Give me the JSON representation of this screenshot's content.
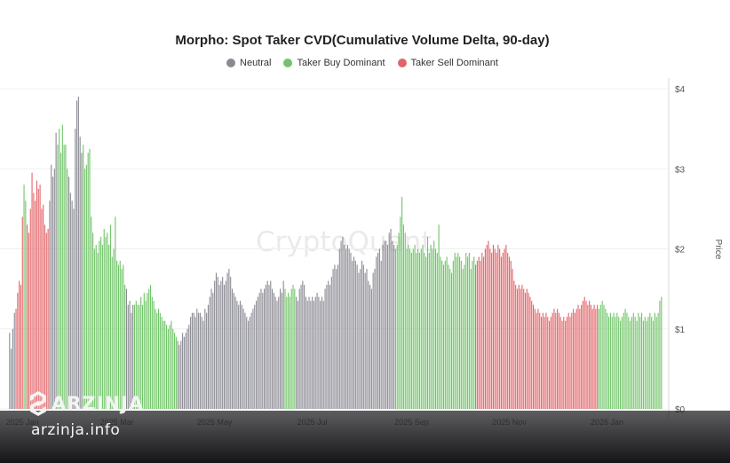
{
  "chart_data": {
    "type": "bar",
    "title": "Morpho: Spot Taker CVD(Cumulative Volume Delta, 90-day)",
    "ylabel": "Price",
    "ylim": [
      0,
      4
    ],
    "y_ticks": [
      "$0",
      "$1",
      "$2",
      "$3",
      "$4"
    ],
    "x_ticks": [
      "2025 Jan",
      "2025 Mar",
      "2025 May",
      "2025 Jul",
      "2025 Sep",
      "2025 Nov",
      "2026 Jan"
    ],
    "legend": [
      {
        "name": "Neutral",
        "color": "#8a8a93"
      },
      {
        "name": "Taker Buy Dominant",
        "color": "#72c46a"
      },
      {
        "name": "Taker Sell Dominant",
        "color": "#e26468"
      }
    ],
    "legend_position": "top-center",
    "grid": true,
    "series_segments": [
      {
        "from": "2024-12-24",
        "to": "2024-12-27",
        "state": "Neutral",
        "values": [
          0.95,
          0.75,
          1.0,
          1.2
        ]
      },
      {
        "from": "2024-12-28",
        "to": "2025-01-01",
        "state": "Taker Sell Dominant",
        "values": [
          1.25,
          1.45,
          1.6,
          1.55,
          2.4
        ]
      },
      {
        "from": "2025-01-02",
        "to": "2025-01-03",
        "state": "Taker Buy Dominant",
        "values": [
          2.8,
          2.6
        ]
      },
      {
        "from": "2025-01-04",
        "to": "2025-01-17",
        "state": "Taker Sell Dominant",
        "values": [
          2.3,
          2.2,
          2.5,
          2.95,
          2.7,
          2.6,
          2.85,
          2.75,
          2.8,
          2.5,
          2.55,
          2.3,
          2.2,
          2.25
        ]
      },
      {
        "from": "2025-01-18",
        "to": "2025-01-22",
        "state": "Neutral",
        "values": [
          2.6,
          3.05,
          2.9,
          3.0,
          3.45
        ]
      },
      {
        "from": "2025-01-23",
        "to": "2025-01-29",
        "state": "Taker Buy Dominant",
        "values": [
          3.3,
          3.5,
          3.2,
          3.55,
          3.3,
          3.3,
          3.0
        ]
      },
      {
        "from": "2025-01-30",
        "to": "2025-02-07",
        "state": "Neutral",
        "values": [
          2.9,
          2.7,
          2.6,
          2.5,
          3.5,
          3.85,
          3.9,
          3.4,
          3.2
        ]
      },
      {
        "from": "2025-02-08",
        "to": "2025-03-06",
        "state": "Taker Buy Dominant",
        "values": [
          3.3,
          3.0,
          3.05,
          3.2,
          3.25,
          2.4,
          2.2,
          2.0,
          2.05,
          1.95,
          2.1,
          2.15,
          2.05,
          2.25,
          2.15,
          2.2,
          2.05,
          2.3,
          1.9,
          2.0,
          2.4,
          1.85,
          1.8,
          1.85,
          1.75,
          1.8,
          1.55
        ]
      },
      {
        "from": "2025-03-07",
        "to": "2025-03-11",
        "state": "Neutral",
        "values": [
          1.5,
          1.3,
          1.35,
          1.2,
          1.3
        ]
      },
      {
        "from": "2025-03-12",
        "to": "2025-04-07",
        "state": "Taker Buy Dominant",
        "values": [
          1.3,
          1.35,
          1.3,
          1.3,
          1.4,
          1.3,
          1.45,
          1.35,
          1.45,
          1.5,
          1.55,
          1.4,
          1.35,
          1.25,
          1.2,
          1.25,
          1.2,
          1.15,
          1.1,
          1.1,
          1.05,
          1.0,
          1.05,
          1.1,
          1.0,
          0.95,
          0.9
        ]
      },
      {
        "from": "2025-04-08",
        "to": "2025-06-13",
        "state": "Neutral",
        "values": [
          0.85,
          0.8,
          0.85,
          0.95,
          0.9,
          0.95,
          1.0,
          1.05,
          1.15,
          1.2,
          1.2,
          1.15,
          1.25,
          1.2,
          1.2,
          1.15,
          1.1,
          1.25,
          1.2,
          1.3,
          1.4,
          1.5,
          1.45,
          1.6,
          1.7,
          1.65,
          1.55,
          1.6,
          1.65,
          1.55,
          1.6,
          1.7,
          1.75,
          1.65,
          1.5,
          1.45,
          1.4,
          1.35,
          1.3,
          1.35,
          1.3,
          1.25,
          1.2,
          1.15,
          1.1,
          1.15,
          1.2,
          1.25,
          1.3,
          1.35,
          1.4,
          1.45,
          1.5,
          1.45,
          1.5,
          1.55,
          1.6,
          1.55,
          1.6,
          1.5,
          1.45,
          1.4,
          1.35,
          1.4,
          1.5,
          1.45,
          1.6
        ]
      },
      {
        "from": "2025-06-14",
        "to": "2025-06-20",
        "state": "Taker Buy Dominant",
        "values": [
          1.5,
          1.4,
          1.45,
          1.4,
          1.5,
          1.55,
          1.5
        ]
      },
      {
        "from": "2025-06-21",
        "to": "2025-08-21",
        "state": "Neutral",
        "values": [
          1.4,
          1.35,
          1.5,
          1.55,
          1.6,
          1.55,
          1.4,
          1.35,
          1.4,
          1.35,
          1.4,
          1.35,
          1.4,
          1.45,
          1.4,
          1.35,
          1.4,
          1.35,
          1.5,
          1.55,
          1.6,
          1.55,
          1.65,
          1.75,
          1.8,
          1.75,
          1.8,
          2.0,
          2.1,
          2.15,
          2.05,
          2.0,
          2.05,
          2.0,
          1.95,
          1.85,
          1.9,
          1.85,
          1.8,
          1.7,
          1.75,
          1.85,
          1.8,
          1.7,
          1.75,
          1.6,
          1.55,
          1.5,
          1.7,
          1.75,
          1.9,
          1.95,
          2.0,
          1.85,
          2.05,
          2.1,
          2.1,
          2.05,
          2.2,
          2.25,
          2.1,
          2.05
        ]
      },
      {
        "from": "2025-08-22",
        "to": "2025-10-10",
        "state": "Taker Buy Dominant",
        "values": [
          2.0,
          2.05,
          2.2,
          2.4,
          2.65,
          2.3,
          2.2,
          2.0,
          2.05,
          2.0,
          1.95,
          2.0,
          2.05,
          1.95,
          2.0,
          1.95,
          2.0,
          2.05,
          1.95,
          1.9,
          2.15,
          1.95,
          2.05,
          2.0,
          2.1,
          2.0,
          1.95,
          2.3,
          1.9,
          1.85,
          1.8,
          1.85,
          1.9,
          1.8,
          1.75,
          1.7,
          1.85,
          1.95,
          1.9,
          1.95,
          1.9,
          1.85,
          1.75,
          1.8,
          1.95,
          1.9,
          1.95,
          1.75,
          1.85,
          1.9
        ]
      },
      {
        "from": "2025-10-11",
        "to": "2025-12-26",
        "state": "Taker Sell Dominant",
        "values": [
          1.8,
          1.85,
          1.9,
          1.85,
          1.95,
          1.9,
          2.0,
          2.05,
          2.1,
          2.0,
          1.95,
          2.05,
          2.0,
          1.95,
          2.05,
          2.0,
          1.9,
          1.95,
          2.0,
          2.05,
          1.95,
          1.9,
          1.85,
          1.75,
          1.6,
          1.55,
          1.5,
          1.55,
          1.5,
          1.55,
          1.5,
          1.45,
          1.5,
          1.45,
          1.4,
          1.35,
          1.3,
          1.25,
          1.2,
          1.25,
          1.2,
          1.15,
          1.2,
          1.15,
          1.2,
          1.15,
          1.1,
          1.15,
          1.2,
          1.25,
          1.2,
          1.25,
          1.2,
          1.15,
          1.1,
          1.15,
          1.1,
          1.15,
          1.2,
          1.15,
          1.2,
          1.25,
          1.2,
          1.25,
          1.3,
          1.25,
          1.3,
          1.35,
          1.4,
          1.35,
          1.3,
          1.35,
          1.3,
          1.25,
          1.3,
          1.25,
          1.3
        ]
      },
      {
        "from": "2025-12-27",
        "to": "2026-02-04",
        "state": "Taker Buy Dominant",
        "values": [
          1.25,
          1.3,
          1.35,
          1.3,
          1.25,
          1.2,
          1.15,
          1.2,
          1.15,
          1.2,
          1.15,
          1.2,
          1.15,
          1.1,
          1.15,
          1.2,
          1.25,
          1.2,
          1.15,
          1.1,
          1.15,
          1.2,
          1.15,
          1.1,
          1.2,
          1.15,
          1.2,
          1.1,
          1.15,
          1.1,
          1.15,
          1.2,
          1.15,
          1.1,
          1.2,
          1.15,
          1.2,
          1.35,
          1.4
        ]
      }
    ]
  },
  "watermark": "CryptoQuant",
  "branding": {
    "name": "ARZINJA",
    "site": "arzinja.info"
  }
}
